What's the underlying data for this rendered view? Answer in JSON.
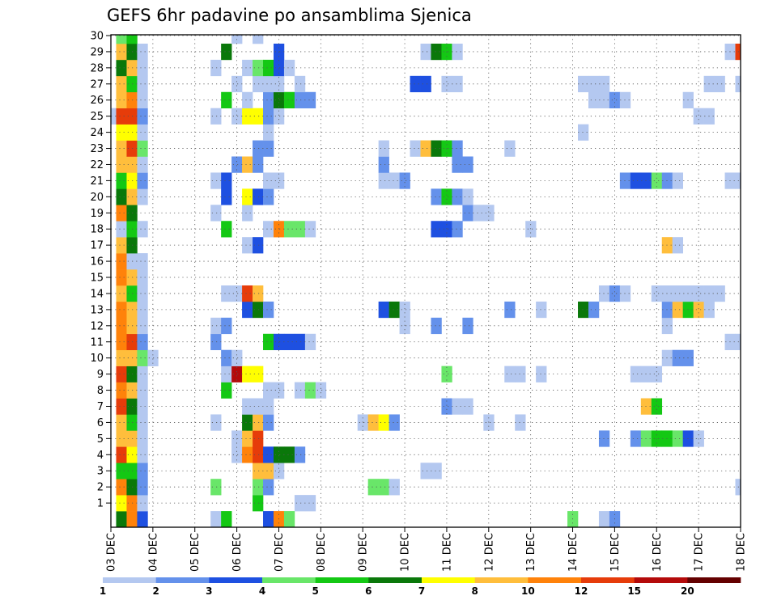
{
  "chart_data": {
    "type": "heatmap",
    "title": "GEFS 6hr padavine po ansamblima Sjenica",
    "xlabel": "",
    "ylabel": "",
    "x_ticks": [
      "03 DEC",
      "04 DEC",
      "05 DEC",
      "06 DEC",
      "07 DEC",
      "08 DEC",
      "09 DEC",
      "10 DEC",
      "11 DEC",
      "12 DEC",
      "13 DEC",
      "14 DEC",
      "15 DEC",
      "16 DEC",
      "17 DEC",
      "18 DEC"
    ],
    "x_range": [
      0,
      60
    ],
    "y_range": [
      0,
      30
    ],
    "y_ticks": [
      1,
      2,
      3,
      4,
      5,
      6,
      7,
      8,
      9,
      10,
      11,
      12,
      13,
      14,
      15,
      16,
      17,
      18,
      19,
      20,
      21,
      22,
      23,
      24,
      25,
      26,
      27,
      28,
      29,
      30
    ],
    "grid": true,
    "legend_position": "bottom",
    "color_levels": [
      1,
      2,
      3,
      4,
      5,
      6,
      7,
      8,
      10,
      12,
      15,
      20
    ],
    "colors": [
      "#b4c8f0",
      "#6491eb",
      "#1e50e1",
      "#69e669",
      "#14c814",
      "#0a780a",
      "#ffff00",
      "#ffbe3c",
      "#ff820a",
      "#e63c0a",
      "#b40a0a",
      "#640000"
    ],
    "cells": {
      "30": [
        [
          1,
          4
        ],
        [
          2,
          5
        ],
        [
          12,
          1
        ],
        [
          14,
          1
        ]
      ],
      "29": [
        [
          1,
          8
        ],
        [
          2,
          6
        ],
        [
          3,
          1
        ],
        [
          11,
          6
        ],
        [
          16,
          3
        ],
        [
          30,
          1
        ],
        [
          31,
          6
        ],
        [
          32,
          5
        ],
        [
          33,
          1
        ],
        [
          59,
          1
        ],
        [
          60,
          10
        ]
      ],
      "28": [
        [
          1,
          6
        ],
        [
          2,
          8
        ],
        [
          3,
          1
        ],
        [
          10,
          1
        ],
        [
          13,
          1
        ],
        [
          14,
          4
        ],
        [
          15,
          5
        ],
        [
          16,
          3
        ],
        [
          17,
          1
        ]
      ],
      "27": [
        [
          1,
          8
        ],
        [
          2,
          5
        ],
        [
          3,
          1
        ],
        [
          12,
          1
        ],
        [
          14,
          1
        ],
        [
          15,
          1
        ],
        [
          16,
          1
        ],
        [
          18,
          1
        ],
        [
          29,
          3
        ],
        [
          30,
          3
        ],
        [
          32,
          1
        ],
        [
          33,
          1
        ],
        [
          45,
          1
        ],
        [
          46,
          1
        ],
        [
          47,
          1
        ],
        [
          57,
          1
        ],
        [
          58,
          1
        ],
        [
          60,
          1
        ]
      ],
      "26": [
        [
          1,
          8
        ],
        [
          2,
          9
        ],
        [
          3,
          1
        ],
        [
          11,
          5
        ],
        [
          13,
          1
        ],
        [
          15,
          2
        ],
        [
          16,
          6
        ],
        [
          17,
          5
        ],
        [
          18,
          2
        ],
        [
          19,
          2
        ],
        [
          46,
          1
        ],
        [
          47,
          1
        ],
        [
          48,
          2
        ],
        [
          49,
          1
        ],
        [
          55,
          1
        ]
      ],
      "25": [
        [
          0,
          1
        ],
        [
          1,
          10
        ],
        [
          2,
          10
        ],
        [
          3,
          2
        ],
        [
          10,
          1
        ],
        [
          12,
          1
        ],
        [
          13,
          7
        ],
        [
          14,
          7
        ],
        [
          15,
          2
        ],
        [
          16,
          1
        ],
        [
          56,
          1
        ],
        [
          57,
          1
        ]
      ],
      "24": [
        [
          1,
          7
        ],
        [
          2,
          7
        ],
        [
          3,
          1
        ],
        [
          15,
          1
        ],
        [
          45,
          1
        ]
      ],
      "23": [
        [
          1,
          8
        ],
        [
          2,
          10
        ],
        [
          3,
          4
        ],
        [
          14,
          2
        ],
        [
          15,
          2
        ],
        [
          26,
          1
        ],
        [
          29,
          1
        ],
        [
          30,
          8
        ],
        [
          31,
          6
        ],
        [
          32,
          5
        ],
        [
          33,
          2
        ],
        [
          38,
          1
        ]
      ],
      "22": [
        [
          1,
          8
        ],
        [
          2,
          8
        ],
        [
          3,
          1
        ],
        [
          12,
          2
        ],
        [
          13,
          8
        ],
        [
          14,
          2
        ],
        [
          26,
          2
        ],
        [
          33,
          2
        ],
        [
          34,
          2
        ]
      ],
      "21": [
        [
          1,
          5
        ],
        [
          2,
          7
        ],
        [
          3,
          2
        ],
        [
          10,
          1
        ],
        [
          11,
          3
        ],
        [
          15,
          1
        ],
        [
          16,
          1
        ],
        [
          26,
          1
        ],
        [
          27,
          1
        ],
        [
          28,
          2
        ],
        [
          49,
          2
        ],
        [
          50,
          3
        ],
        [
          51,
          3
        ],
        [
          52,
          4
        ],
        [
          53,
          2
        ],
        [
          54,
          1
        ],
        [
          59,
          1
        ],
        [
          60,
          1
        ]
      ],
      "20": [
        [
          1,
          6
        ],
        [
          2,
          8
        ],
        [
          3,
          1
        ],
        [
          11,
          3
        ],
        [
          13,
          7
        ],
        [
          14,
          3
        ],
        [
          15,
          2
        ],
        [
          31,
          2
        ],
        [
          32,
          5
        ],
        [
          33,
          2
        ],
        [
          34,
          1
        ]
      ],
      "19": [
        [
          1,
          9
        ],
        [
          2,
          6
        ],
        [
          10,
          1
        ],
        [
          13,
          1
        ],
        [
          34,
          2
        ],
        [
          35,
          1
        ],
        [
          36,
          1
        ]
      ],
      "18": [
        [
          1,
          1
        ],
        [
          2,
          5
        ],
        [
          3,
          1
        ],
        [
          11,
          5
        ],
        [
          15,
          1
        ],
        [
          16,
          9
        ],
        [
          17,
          4
        ],
        [
          18,
          4
        ],
        [
          19,
          1
        ],
        [
          31,
          3
        ],
        [
          32,
          3
        ],
        [
          33,
          2
        ],
        [
          40,
          1
        ]
      ],
      "17": [
        [
          1,
          8
        ],
        [
          2,
          6
        ],
        [
          13,
          1
        ],
        [
          14,
          3
        ],
        [
          53,
          8
        ],
        [
          54,
          1
        ]
      ],
      "16": [
        [
          1,
          9
        ],
        [
          2,
          1
        ],
        [
          3,
          1
        ]
      ],
      "15": [
        [
          1,
          9
        ],
        [
          2,
          8
        ],
        [
          3,
          1
        ]
      ],
      "14": [
        [
          1,
          8
        ],
        [
          2,
          5
        ],
        [
          3,
          1
        ],
        [
          11,
          1
        ],
        [
          12,
          1
        ],
        [
          13,
          10
        ],
        [
          14,
          8
        ],
        [
          47,
          1
        ],
        [
          48,
          2
        ],
        [
          49,
          1
        ],
        [
          52,
          1
        ],
        [
          53,
          1
        ],
        [
          54,
          1
        ],
        [
          55,
          1
        ],
        [
          56,
          1
        ],
        [
          57,
          1
        ],
        [
          58,
          1
        ]
      ],
      "13": [
        [
          1,
          9
        ],
        [
          2,
          8
        ],
        [
          3,
          1
        ],
        [
          13,
          3
        ],
        [
          14,
          6
        ],
        [
          15,
          2
        ],
        [
          26,
          3
        ],
        [
          27,
          6
        ],
        [
          28,
          1
        ],
        [
          38,
          2
        ],
        [
          41,
          1
        ],
        [
          45,
          6
        ],
        [
          46,
          2
        ],
        [
          53,
          2
        ],
        [
          54,
          8
        ],
        [
          55,
          5
        ],
        [
          56,
          8
        ],
        [
          57,
          1
        ]
      ],
      "12": [
        [
          1,
          9
        ],
        [
          2,
          8
        ],
        [
          3,
          1
        ],
        [
          10,
          1
        ],
        [
          11,
          2
        ],
        [
          28,
          1
        ],
        [
          31,
          2
        ],
        [
          34,
          2
        ],
        [
          53,
          1
        ]
      ],
      "11": [
        [
          1,
          9
        ],
        [
          2,
          10
        ],
        [
          3,
          2
        ],
        [
          10,
          2
        ],
        [
          15,
          5
        ],
        [
          16,
          3
        ],
        [
          17,
          3
        ],
        [
          18,
          3
        ],
        [
          19,
          1
        ],
        [
          59,
          1
        ],
        [
          60,
          1
        ]
      ],
      "10": [
        [
          1,
          8
        ],
        [
          2,
          8
        ],
        [
          3,
          4
        ],
        [
          4,
          1
        ],
        [
          11,
          2
        ],
        [
          12,
          1
        ],
        [
          53,
          1
        ],
        [
          54,
          2
        ],
        [
          55,
          2
        ]
      ],
      "9": [
        [
          1,
          10
        ],
        [
          2,
          6
        ],
        [
          3,
          1
        ],
        [
          11,
          1
        ],
        [
          12,
          11
        ],
        [
          13,
          7
        ],
        [
          14,
          7
        ],
        [
          32,
          4
        ],
        [
          38,
          1
        ],
        [
          39,
          1
        ],
        [
          41,
          1
        ],
        [
          50,
          1
        ],
        [
          51,
          1
        ],
        [
          52,
          1
        ]
      ],
      "8": [
        [
          1,
          9
        ],
        [
          2,
          8
        ],
        [
          3,
          1
        ],
        [
          11,
          5
        ],
        [
          15,
          1
        ],
        [
          16,
          1
        ],
        [
          18,
          1
        ],
        [
          19,
          4
        ],
        [
          20,
          1
        ]
      ],
      "7": [
        [
          1,
          10
        ],
        [
          2,
          6
        ],
        [
          3,
          1
        ],
        [
          13,
          1
        ],
        [
          14,
          1
        ],
        [
          15,
          1
        ],
        [
          32,
          2
        ],
        [
          33,
          1
        ],
        [
          34,
          1
        ],
        [
          51,
          8
        ],
        [
          52,
          5
        ]
      ],
      "6": [
        [
          1,
          8
        ],
        [
          2,
          5
        ],
        [
          3,
          1
        ],
        [
          10,
          1
        ],
        [
          13,
          6
        ],
        [
          14,
          8
        ],
        [
          15,
          2
        ],
        [
          24,
          1
        ],
        [
          25,
          8
        ],
        [
          26,
          7
        ],
        [
          27,
          2
        ],
        [
          36,
          1
        ],
        [
          39,
          1
        ]
      ],
      "5": [
        [
          1,
          8
        ],
        [
          2,
          8
        ],
        [
          3,
          1
        ],
        [
          12,
          1
        ],
        [
          13,
          8
        ],
        [
          14,
          10
        ],
        [
          47,
          2
        ],
        [
          50,
          2
        ],
        [
          51,
          4
        ],
        [
          52,
          5
        ],
        [
          53,
          5
        ],
        [
          54,
          4
        ],
        [
          55,
          3
        ],
        [
          56,
          1
        ]
      ],
      "4": [
        [
          1,
          10
        ],
        [
          2,
          7
        ],
        [
          3,
          1
        ],
        [
          12,
          1
        ],
        [
          13,
          9
        ],
        [
          14,
          10
        ],
        [
          15,
          3
        ],
        [
          16,
          6
        ],
        [
          17,
          6
        ],
        [
          18,
          2
        ]
      ],
      "3": [
        [
          1,
          5
        ],
        [
          2,
          5
        ],
        [
          3,
          2
        ],
        [
          14,
          8
        ],
        [
          15,
          8
        ],
        [
          16,
          1
        ],
        [
          30,
          1
        ],
        [
          31,
          1
        ]
      ],
      "2": [
        [
          1,
          9
        ],
        [
          2,
          6
        ],
        [
          3,
          2
        ],
        [
          10,
          4
        ],
        [
          14,
          4
        ],
        [
          15,
          2
        ],
        [
          25,
          4
        ],
        [
          26,
          4
        ],
        [
          27,
          1
        ],
        [
          60,
          1
        ]
      ],
      "1": [
        [
          1,
          7
        ],
        [
          2,
          9
        ],
        [
          3,
          1
        ],
        [
          14,
          5
        ],
        [
          18,
          1
        ],
        [
          19,
          1
        ]
      ],
      "0": [
        [
          1,
          6
        ],
        [
          2,
          9
        ],
        [
          3,
          3
        ],
        [
          10,
          1
        ],
        [
          11,
          5
        ],
        [
          15,
          3
        ],
        [
          16,
          9
        ],
        [
          17,
          4
        ],
        [
          44,
          4
        ],
        [
          47,
          1
        ],
        [
          48,
          2
        ]
      ]
    }
  }
}
